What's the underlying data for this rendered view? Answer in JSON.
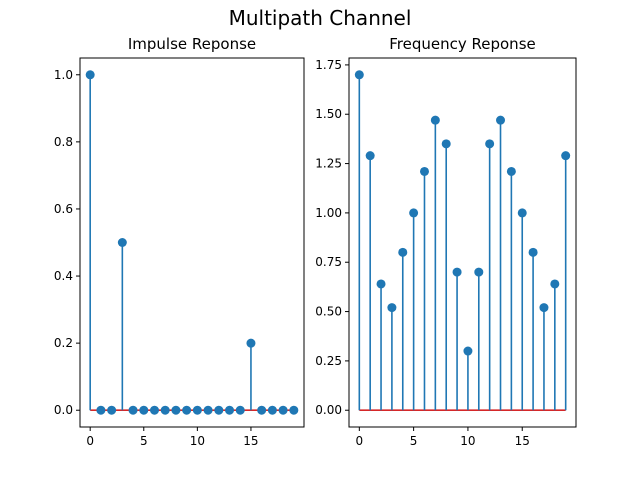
{
  "suptitle": "Multipath Channel",
  "chart_data": [
    {
      "type": "stem",
      "title": "Impulse Reponse",
      "xlabel": "",
      "ylabel": "",
      "x": [
        0,
        1,
        2,
        3,
        4,
        5,
        6,
        7,
        8,
        9,
        10,
        11,
        12,
        13,
        14,
        15,
        16,
        17,
        18,
        19
      ],
      "values": [
        1.0,
        0,
        0,
        0.5,
        0,
        0,
        0,
        0,
        0,
        0,
        0,
        0,
        0,
        0,
        0,
        0.2,
        0,
        0,
        0,
        0
      ],
      "xlim": [
        -0.95,
        19.95
      ],
      "ylim": [
        -0.05,
        1.05
      ],
      "xticks": [
        0,
        5,
        10,
        15
      ],
      "xtick_labels": [
        "0",
        "5",
        "10",
        "15"
      ],
      "yticks": [
        0,
        0.2,
        0.4,
        0.6,
        0.8,
        1.0
      ],
      "ytick_labels": [
        "0.0",
        "0.2",
        "0.4",
        "0.6",
        "0.8",
        "1.0"
      ],
      "grid": false,
      "colors": {
        "stem": "#1f77b4",
        "baseline": "#d62728"
      }
    },
    {
      "type": "stem",
      "title": "Frequency Reponse",
      "xlabel": "",
      "ylabel": "",
      "x": [
        0,
        1,
        2,
        3,
        4,
        5,
        6,
        7,
        8,
        9,
        10,
        11,
        12,
        13,
        14,
        15,
        16,
        17,
        18,
        19
      ],
      "values": [
        1.7,
        1.29,
        0.64,
        0.52,
        0.8,
        1.0,
        1.21,
        1.47,
        1.35,
        0.7,
        0.3,
        0.7,
        1.35,
        1.47,
        1.21,
        1.0,
        0.8,
        0.52,
        0.64,
        1.29
      ],
      "xlim": [
        -0.95,
        19.95
      ],
      "ylim": [
        -0.085,
        1.785
      ],
      "xticks": [
        0,
        5,
        10,
        15
      ],
      "xtick_labels": [
        "0",
        "5",
        "10",
        "15"
      ],
      "yticks": [
        0,
        0.25,
        0.5,
        0.75,
        1.0,
        1.25,
        1.5,
        1.75
      ],
      "ytick_labels": [
        "0.00",
        "0.25",
        "0.50",
        "0.75",
        "1.00",
        "1.25",
        "1.50",
        "1.75"
      ],
      "grid": false,
      "colors": {
        "stem": "#1f77b4",
        "baseline": "#d62728"
      }
    }
  ]
}
